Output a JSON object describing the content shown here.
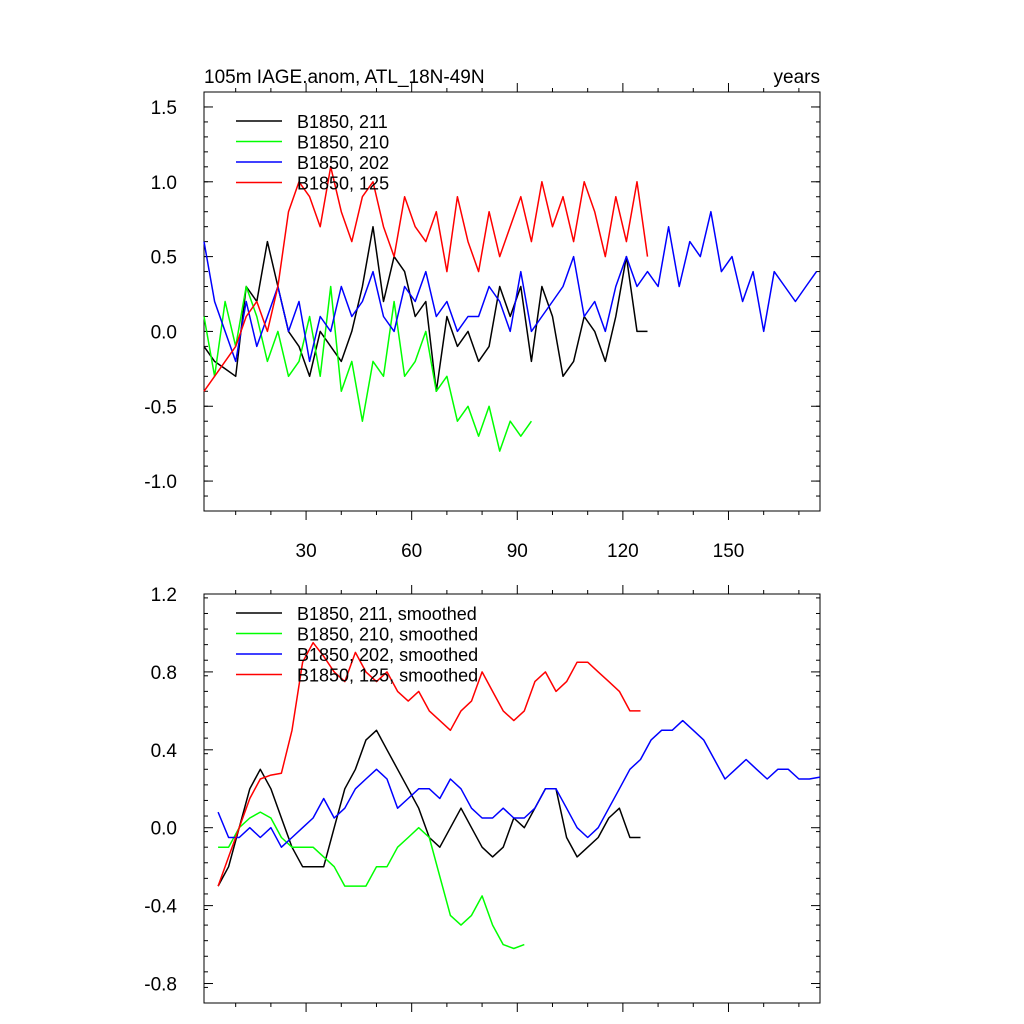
{
  "chart_data": [
    {
      "type": "line",
      "title": "105m IAGE.anom, ATL_18N-49N",
      "title_right": "years",
      "xlim": [
        1,
        176
      ],
      "ylim": [
        -1.2,
        1.6
      ],
      "yticks": [
        -1.0,
        -0.5,
        0.0,
        0.5,
        1.0,
        1.5
      ],
      "ytick_labels": [
        "-1.0",
        "-0.5",
        "0.0",
        "0.5",
        "1.0",
        "1.5"
      ],
      "xticks": [
        30,
        60,
        90,
        120,
        150
      ],
      "xtick_labels": [
        "30",
        "60",
        "90",
        "120",
        "150"
      ],
      "legend_position": "top-left",
      "series": [
        {
          "name": "B1850, 211",
          "color": "#000000",
          "x": [
            1,
            4,
            7,
            10,
            13,
            16,
            19,
            22,
            25,
            28,
            31,
            34,
            37,
            40,
            43,
            46,
            49,
            52,
            55,
            58,
            61,
            64,
            67,
            70,
            73,
            76,
            79,
            82,
            85,
            88,
            91,
            94,
            97,
            100,
            103,
            106,
            109,
            112,
            115,
            118,
            121,
            124,
            127
          ],
          "values": [
            -0.1,
            -0.2,
            -0.25,
            -0.3,
            0.3,
            0.2,
            0.6,
            0.3,
            0.0,
            -0.1,
            -0.3,
            0.0,
            -0.1,
            -0.2,
            0.0,
            0.3,
            0.7,
            0.2,
            0.5,
            0.4,
            0.1,
            0.2,
            -0.4,
            0.1,
            -0.1,
            0.0,
            -0.2,
            -0.1,
            0.3,
            0.1,
            0.3,
            -0.2,
            0.3,
            0.1,
            -0.3,
            -0.2,
            0.1,
            0.0,
            -0.2,
            0.1,
            0.5,
            0.0,
            0.0
          ]
        },
        {
          "name": "B1850, 210",
          "color": "#00ff00",
          "x": [
            1,
            4,
            7,
            10,
            13,
            16,
            19,
            22,
            25,
            28,
            31,
            34,
            37,
            40,
            43,
            46,
            49,
            52,
            55,
            58,
            61,
            64,
            67,
            70,
            73,
            76,
            79,
            82,
            85,
            88,
            91,
            94
          ],
          "values": [
            0.1,
            -0.3,
            0.2,
            -0.1,
            0.3,
            0.1,
            -0.2,
            0.0,
            -0.3,
            -0.2,
            0.1,
            -0.3,
            0.3,
            -0.4,
            -0.2,
            -0.6,
            -0.2,
            -0.3,
            0.2,
            -0.3,
            -0.2,
            0.0,
            -0.4,
            -0.3,
            -0.6,
            -0.5,
            -0.7,
            -0.5,
            -0.8,
            -0.6,
            -0.7,
            -0.6
          ]
        },
        {
          "name": "B1850, 202",
          "color": "#0000ff",
          "x": [
            1,
            4,
            7,
            10,
            13,
            16,
            19,
            22,
            25,
            28,
            31,
            34,
            37,
            40,
            43,
            46,
            49,
            52,
            55,
            58,
            61,
            64,
            67,
            70,
            73,
            76,
            79,
            82,
            85,
            88,
            91,
            94,
            97,
            100,
            103,
            106,
            109,
            112,
            115,
            118,
            121,
            124,
            127,
            130,
            133,
            136,
            139,
            142,
            145,
            148,
            151,
            154,
            157,
            160,
            163,
            166,
            169,
            172,
            175
          ],
          "values": [
            0.6,
            0.2,
            0.0,
            -0.2,
            0.2,
            -0.1,
            0.1,
            0.3,
            0.0,
            0.2,
            -0.2,
            0.1,
            0.0,
            0.3,
            0.1,
            0.2,
            0.4,
            0.1,
            0.0,
            0.3,
            0.2,
            0.4,
            0.1,
            0.2,
            0.0,
            0.1,
            0.1,
            0.3,
            0.2,
            0.0,
            0.4,
            0.0,
            0.1,
            0.2,
            0.3,
            0.5,
            0.1,
            0.2,
            0.0,
            0.3,
            0.5,
            0.3,
            0.4,
            0.3,
            0.7,
            0.3,
            0.6,
            0.5,
            0.8,
            0.4,
            0.5,
            0.2,
            0.4,
            0.0,
            0.4,
            0.3,
            0.2,
            0.3,
            0.4
          ]
        },
        {
          "name": "B1850, 125",
          "color": "#ff0000",
          "x": [
            1,
            4,
            7,
            10,
            13,
            16,
            19,
            22,
            25,
            28,
            31,
            34,
            37,
            40,
            43,
            46,
            49,
            52,
            55,
            58,
            61,
            64,
            67,
            70,
            73,
            76,
            79,
            82,
            85,
            88,
            91,
            94,
            97,
            100,
            103,
            106,
            109,
            112,
            115,
            118,
            121,
            124,
            127
          ],
          "values": [
            -0.4,
            -0.3,
            -0.2,
            -0.1,
            0.1,
            0.2,
            0.0,
            0.3,
            0.8,
            1.0,
            0.9,
            0.7,
            1.1,
            0.8,
            0.6,
            0.9,
            1.0,
            0.7,
            0.5,
            0.9,
            0.7,
            0.6,
            0.8,
            0.4,
            0.9,
            0.6,
            0.4,
            0.8,
            0.5,
            0.7,
            0.9,
            0.6,
            1.0,
            0.7,
            0.9,
            0.6,
            1.0,
            0.8,
            0.5,
            0.9,
            0.6,
            1.0,
            0.5
          ]
        }
      ]
    },
    {
      "type": "line",
      "xlim": [
        1,
        176
      ],
      "ylim": [
        -0.9,
        1.2
      ],
      "yticks": [
        -0.8,
        -0.4,
        0.0,
        0.4,
        0.8,
        1.2
      ],
      "ytick_labels": [
        "-0.8",
        "-0.4",
        "0.0",
        "0.4",
        "0.8",
        "1.2"
      ],
      "xticks": [
        30,
        60,
        90,
        120,
        150
      ],
      "legend_position": "top-left",
      "series": [
        {
          "name": "B1850, 211, smoothed",
          "color": "#000000",
          "x": [
            5,
            8,
            11,
            14,
            17,
            20,
            23,
            26,
            29,
            32,
            35,
            38,
            41,
            44,
            47,
            50,
            53,
            56,
            59,
            62,
            65,
            68,
            71,
            74,
            77,
            80,
            83,
            86,
            89,
            92,
            95,
            98,
            101,
            104,
            107,
            110,
            113,
            116,
            119,
            122,
            125
          ],
          "values": [
            -0.3,
            -0.2,
            0.0,
            0.2,
            0.3,
            0.2,
            0.05,
            -0.1,
            -0.2,
            -0.2,
            -0.2,
            0.0,
            0.2,
            0.3,
            0.45,
            0.5,
            0.4,
            0.3,
            0.2,
            0.1,
            -0.05,
            -0.1,
            0.0,
            0.1,
            0.0,
            -0.1,
            -0.15,
            -0.1,
            0.05,
            0.0,
            0.1,
            0.2,
            0.2,
            -0.05,
            -0.15,
            -0.1,
            -0.05,
            0.05,
            0.1,
            -0.05,
            -0.05
          ]
        },
        {
          "name": "B1850, 210, smoothed",
          "color": "#00ff00",
          "x": [
            5,
            8,
            11,
            14,
            17,
            20,
            23,
            26,
            29,
            32,
            35,
            38,
            41,
            44,
            47,
            50,
            53,
            56,
            59,
            62,
            65,
            68,
            71,
            74,
            77,
            80,
            83,
            86,
            89,
            92
          ],
          "values": [
            -0.1,
            -0.1,
            0.0,
            0.05,
            0.08,
            0.05,
            -0.05,
            -0.1,
            -0.1,
            -0.1,
            -0.15,
            -0.2,
            -0.3,
            -0.3,
            -0.3,
            -0.2,
            -0.2,
            -0.1,
            -0.05,
            0.0,
            -0.05,
            -0.25,
            -0.45,
            -0.5,
            -0.45,
            -0.35,
            -0.5,
            -0.6,
            -0.62,
            -0.6
          ]
        },
        {
          "name": "B1850, 202, smoothed",
          "color": "#0000ff",
          "x": [
            5,
            8,
            11,
            14,
            17,
            20,
            23,
            26,
            29,
            32,
            35,
            38,
            41,
            44,
            47,
            50,
            53,
            56,
            59,
            62,
            65,
            68,
            71,
            74,
            77,
            80,
            83,
            86,
            89,
            92,
            95,
            98,
            101,
            104,
            107,
            110,
            113,
            116,
            119,
            122,
            125,
            128,
            131,
            134,
            137,
            140,
            143,
            146,
            149,
            152,
            155,
            158,
            161,
            164,
            167,
            170,
            173,
            176
          ],
          "values": [
            0.08,
            -0.05,
            -0.05,
            0.0,
            -0.05,
            0.0,
            -0.1,
            -0.05,
            0.0,
            0.05,
            0.15,
            0.05,
            0.1,
            0.2,
            0.25,
            0.3,
            0.25,
            0.1,
            0.15,
            0.2,
            0.2,
            0.15,
            0.25,
            0.2,
            0.1,
            0.05,
            0.05,
            0.1,
            0.05,
            0.05,
            0.1,
            0.2,
            0.2,
            0.1,
            0.0,
            -0.05,
            0.0,
            0.1,
            0.2,
            0.3,
            0.35,
            0.45,
            0.5,
            0.5,
            0.55,
            0.5,
            0.45,
            0.35,
            0.25,
            0.3,
            0.35,
            0.3,
            0.25,
            0.3,
            0.3,
            0.25,
            0.25,
            0.26
          ]
        },
        {
          "name": "B1850, 125, smoothed",
          "color": "#ff0000",
          "x": [
            5,
            8,
            11,
            14,
            17,
            20,
            23,
            26,
            29,
            32,
            35,
            38,
            41,
            44,
            47,
            50,
            53,
            56,
            59,
            62,
            65,
            68,
            71,
            74,
            77,
            80,
            83,
            86,
            89,
            92,
            95,
            98,
            101,
            104,
            107,
            110,
            113,
            116,
            119,
            122,
            125
          ],
          "values": [
            -0.3,
            -0.15,
            0.0,
            0.15,
            0.25,
            0.27,
            0.28,
            0.5,
            0.85,
            0.95,
            0.88,
            0.8,
            0.75,
            0.9,
            0.8,
            0.75,
            0.8,
            0.7,
            0.65,
            0.7,
            0.6,
            0.55,
            0.5,
            0.6,
            0.65,
            0.8,
            0.7,
            0.6,
            0.55,
            0.6,
            0.75,
            0.8,
            0.7,
            0.75,
            0.85,
            0.85,
            0.8,
            0.75,
            0.7,
            0.6,
            0.6
          ]
        }
      ]
    }
  ]
}
